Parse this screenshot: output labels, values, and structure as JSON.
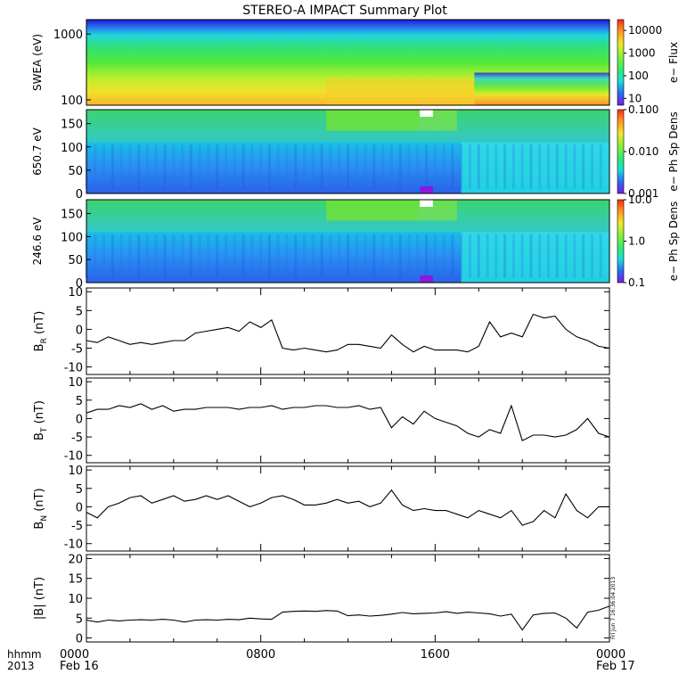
{
  "title": "STEREO-A IMPACT Summary Plot",
  "footer": {
    "left_line1": "hhmm",
    "left_line2": "2013",
    "stamp": "Fri Jun  7 16:36:04 2013"
  },
  "chart_data": [
    {
      "type": "heatmap",
      "id": "swea",
      "ylabel": "SWEA (eV)",
      "ylim": [
        100,
        2000
      ],
      "yscale": "log",
      "yticks": [
        "1000",
        "100"
      ],
      "yticks_values": [
        1000,
        100
      ],
      "colorbar": {
        "label": "e− Flux",
        "scale": "log",
        "range": [
          5,
          30000
        ],
        "ticks": [
          "10000",
          "1000",
          "100",
          "10"
        ],
        "tick_values": [
          10000,
          1000,
          100,
          10
        ]
      }
    },
    {
      "type": "heatmap",
      "id": "pad650",
      "ylabel": "650.7 eV",
      "ylim": [
        0,
        180
      ],
      "yticks": [
        "150",
        "100",
        "50",
        "0"
      ],
      "yticks_values": [
        150,
        100,
        50,
        0
      ],
      "colorbar": {
        "label": "e− Ph Sp Dens",
        "scale": "log",
        "range": [
          0.001,
          0.1
        ],
        "ticks": [
          "0.100",
          "0.010",
          "0.001"
        ],
        "tick_values": [
          0.1,
          0.01,
          0.001
        ]
      }
    },
    {
      "type": "heatmap",
      "id": "pad246",
      "ylabel": "246.6 eV",
      "ylim": [
        0,
        180
      ],
      "yticks": [
        "150",
        "100",
        "50",
        "0"
      ],
      "yticks_values": [
        150,
        100,
        50,
        0
      ],
      "colorbar": {
        "label": "e− Ph Sp Dens",
        "scale": "log",
        "range": [
          0.1,
          10
        ],
        "ticks": [
          "10.0",
          "1.0",
          "0.1"
        ],
        "tick_values": [
          10,
          1,
          0.1
        ]
      }
    },
    {
      "type": "line",
      "id": "br",
      "ylabel_main": "B",
      "ylabel_sub": "R",
      "ylabel_unit": " (nT)",
      "ylim": [
        -12,
        11
      ],
      "yticks": [
        "10",
        "5",
        "0",
        "-5",
        "-10"
      ],
      "yticks_values": [
        10,
        5,
        0,
        -5,
        -10
      ],
      "x": [
        0,
        0.5,
        1,
        1.5,
        2,
        2.5,
        3,
        3.5,
        4,
        4.5,
        5,
        5.5,
        6,
        6.5,
        7,
        7.5,
        8,
        8.5,
        9,
        9.5,
        10,
        10.5,
        11,
        11.5,
        12,
        12.5,
        13,
        13.5,
        14,
        14.5,
        15,
        15.5,
        16,
        16.5,
        17,
        17.5,
        18,
        18.5,
        19,
        19.5,
        20,
        20.5,
        21,
        21.5,
        22,
        22.5,
        23,
        23.5,
        24
      ],
      "y": [
        -3,
        -3.5,
        -2,
        -3,
        -4,
        -3.5,
        -4,
        -3.5,
        -3,
        -3,
        -1,
        -0.5,
        0,
        0.5,
        -0.5,
        2,
        0.5,
        2.5,
        -5,
        -5.5,
        -5,
        -5.5,
        -6,
        -5.5,
        -4,
        -4,
        -4.5,
        -5,
        -1.5,
        -4,
        -6,
        -4.5,
        -5.5,
        -5.5,
        -5.5,
        -6,
        -4.5,
        2,
        -2,
        -1,
        -2,
        4,
        3,
        3.5,
        0,
        -2,
        -3,
        -4.5,
        -5
      ]
    },
    {
      "type": "line",
      "id": "bt",
      "ylabel_main": "B",
      "ylabel_sub": "T",
      "ylabel_unit": " (nT)",
      "ylim": [
        -12,
        11
      ],
      "yticks": [
        "10",
        "5",
        "0",
        "-5",
        "-10"
      ],
      "yticks_values": [
        10,
        5,
        0,
        -5,
        -10
      ],
      "x": [
        0,
        0.5,
        1,
        1.5,
        2,
        2.5,
        3,
        3.5,
        4,
        4.5,
        5,
        5.5,
        6,
        6.5,
        7,
        7.5,
        8,
        8.5,
        9,
        9.5,
        10,
        10.5,
        11,
        11.5,
        12,
        12.5,
        13,
        13.5,
        14,
        14.5,
        15,
        15.5,
        16,
        16.5,
        17,
        17.5,
        18,
        18.5,
        19,
        19.5,
        20,
        20.5,
        21,
        21.5,
        22,
        22.5,
        23,
        23.5,
        24
      ],
      "y": [
        1.5,
        2.5,
        2.5,
        3.5,
        3,
        4,
        2.5,
        3.5,
        2,
        2.5,
        2.5,
        3,
        3,
        3,
        2.5,
        3,
        3,
        3.5,
        2.5,
        3,
        3,
        3.5,
        3.5,
        3,
        3,
        3.5,
        2.5,
        3,
        -2.5,
        0.5,
        -1.5,
        2,
        0,
        -1,
        -2,
        -4,
        -5,
        -3,
        -4,
        3.5,
        -6,
        -4.5,
        -4.5,
        -5,
        -4.5,
        -3,
        0,
        -4,
        -5
      ]
    },
    {
      "type": "line",
      "id": "bn",
      "ylabel_main": "B",
      "ylabel_sub": "N",
      "ylabel_unit": " (nT)",
      "ylim": [
        -12,
        11
      ],
      "yticks": [
        "10",
        "5",
        "0",
        "-5",
        "-10"
      ],
      "yticks_values": [
        10,
        5,
        0,
        -5,
        -10
      ],
      "x": [
        0,
        0.5,
        1,
        1.5,
        2,
        2.5,
        3,
        3.5,
        4,
        4.5,
        5,
        5.5,
        6,
        6.5,
        7,
        7.5,
        8,
        8.5,
        9,
        9.5,
        10,
        10.5,
        11,
        11.5,
        12,
        12.5,
        13,
        13.5,
        14,
        14.5,
        15,
        15.5,
        16,
        16.5,
        17,
        17.5,
        18,
        18.5,
        19,
        19.5,
        20,
        20.5,
        21,
        21.5,
        22,
        22.5,
        23,
        23.5,
        24
      ],
      "y": [
        -1.5,
        -3,
        0,
        1,
        2.5,
        3,
        1,
        2,
        3,
        1.5,
        2,
        3,
        2,
        3,
        1.5,
        0,
        1,
        2.5,
        3,
        2,
        0.5,
        0.5,
        1,
        2,
        1,
        1.5,
        0,
        1,
        4.5,
        0.5,
        -1,
        -0.5,
        -1,
        -1,
        -2,
        -3,
        -1,
        -2,
        -3,
        -1,
        -5,
        -4,
        -1,
        -3,
        3.5,
        -1,
        -3,
        0,
        0
      ]
    },
    {
      "type": "line",
      "id": "bmag",
      "ylabel_main": "|B|",
      "ylabel_sub": "",
      "ylabel_unit": " (nT)",
      "ylim": [
        -1,
        21
      ],
      "yticks": [
        "20",
        "15",
        "10",
        "5",
        "0"
      ],
      "yticks_values": [
        20,
        15,
        10,
        5,
        0
      ],
      "x": [
        0,
        0.5,
        1,
        1.5,
        2,
        2.5,
        3,
        3.5,
        4,
        4.5,
        5,
        5.5,
        6,
        6.5,
        7,
        7.5,
        8,
        8.5,
        9,
        9.5,
        10,
        10.5,
        11,
        11.5,
        12,
        12.5,
        13,
        13.5,
        14,
        14.5,
        15,
        15.5,
        16,
        16.5,
        17,
        17.5,
        18,
        18.5,
        19,
        19.5,
        20,
        20.5,
        21,
        21.5,
        22,
        22.5,
        23,
        23.5,
        24
      ],
      "y": [
        4.5,
        4,
        4.5,
        4.3,
        4.5,
        4.6,
        4.5,
        4.7,
        4.5,
        4,
        4.5,
        4.6,
        4.5,
        4.7,
        4.6,
        5,
        4.8,
        4.7,
        6.5,
        6.7,
        6.8,
        6.7,
        6.9,
        6.8,
        5.6,
        5.8,
        5.5,
        5.7,
        6,
        6.4,
        6.1,
        6.2,
        6.3,
        6.6,
        6.2,
        6.5,
        6.3,
        6.1,
        5.5,
        6,
        2,
        5.8,
        6.2,
        6.3,
        5,
        2.5,
        6.5,
        7,
        8
      ]
    }
  ],
  "xaxis": {
    "range_hours": [
      0,
      24
    ],
    "ticks": [
      {
        "hour": 0,
        "label": "0000",
        "sub": "Feb 16"
      },
      {
        "hour": 8,
        "label": "0800",
        "sub": ""
      },
      {
        "hour": 16,
        "label": "1600",
        "sub": ""
      },
      {
        "hour": 24,
        "label": "0000",
        "sub": "Feb 17"
      }
    ]
  }
}
